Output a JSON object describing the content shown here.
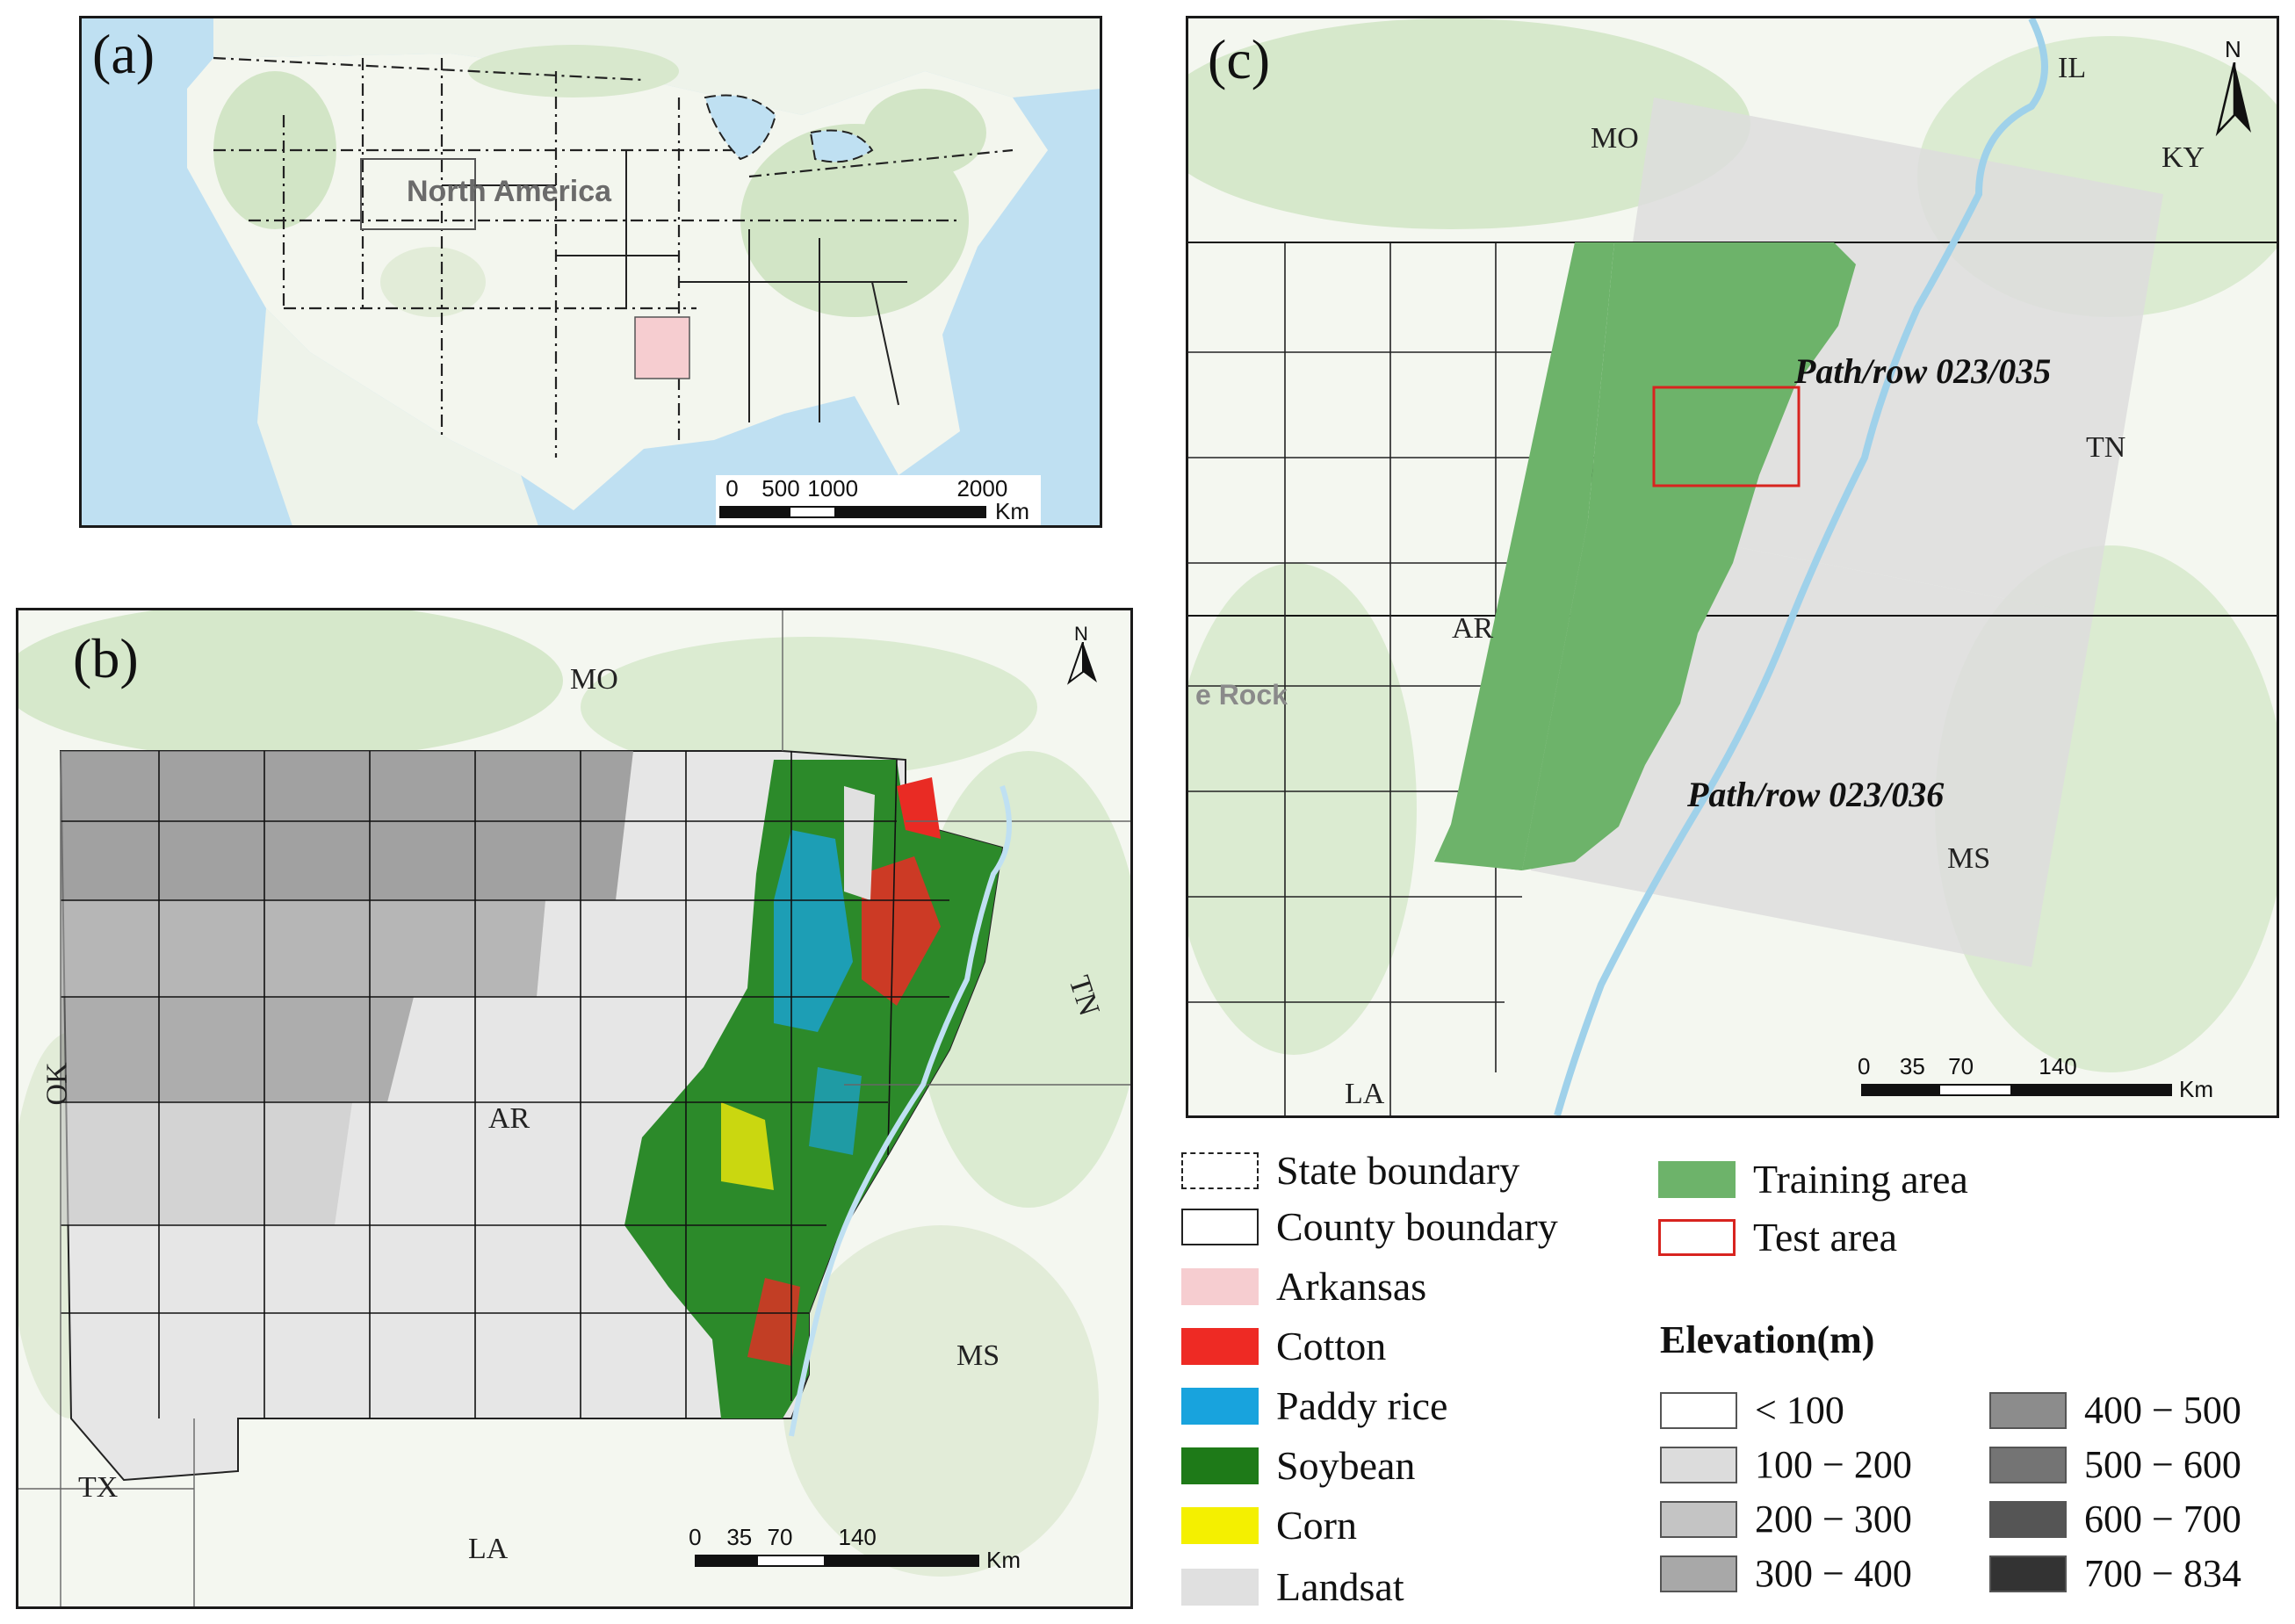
{
  "panels": {
    "a": {
      "label": "(a)",
      "region_label": "North America",
      "scale": {
        "ticks": [
          "0",
          "500",
          "1000",
          "2000"
        ],
        "unit": "Km"
      },
      "colors": {
        "ocean": "#bfe0f2",
        "land": "#f4f7f0",
        "veg": "#cfe3c3",
        "arkansas": "#f6cdd0"
      }
    },
    "b": {
      "label": "(b)",
      "north": "N",
      "states": {
        "mo": "MO",
        "ok": "OK",
        "ar": "AR",
        "tn": "TN",
        "ms": "MS",
        "tx": "TX",
        "la": "LA"
      },
      "scale": {
        "ticks": [
          "0",
          "35",
          "70",
          "140"
        ],
        "unit": "Km"
      }
    },
    "c": {
      "label": "(c)",
      "north": "N",
      "states": {
        "mo": "MO",
        "il": "IL",
        "ky": "KY",
        "tn": "TN",
        "ar": "AR",
        "ms": "MS",
        "la": "LA"
      },
      "city": "e Rock",
      "path_row_1": "Path/row 023/035",
      "path_row_2": "Path/row 023/036",
      "scale": {
        "ticks": [
          "0",
          "35",
          "70",
          "140"
        ],
        "unit": "Km"
      }
    }
  },
  "legend": {
    "items": [
      {
        "label": "State boundary",
        "style": "dashed",
        "color": "#ffffff"
      },
      {
        "label": "County boundary",
        "style": "solid",
        "color": "#ffffff"
      },
      {
        "label": "Arkansas",
        "color": "#f6cdd0"
      },
      {
        "label": "Cotton",
        "color": "#ee2a24"
      },
      {
        "label": "Paddy rice",
        "color": "#18a3dd"
      },
      {
        "label": "Soybean",
        "color": "#1e7a18"
      },
      {
        "label": "Corn",
        "color": "#f4f000"
      },
      {
        "label": "Landsat",
        "color": "#e0e0e0"
      }
    ],
    "training": {
      "label": "Training area",
      "color": "#6db36a"
    },
    "test": {
      "label": "Test area",
      "color": "#d8241f"
    },
    "elevation_title": "Elevation(m)",
    "elevation": [
      {
        "label": "< 100",
        "color": "#ffffff"
      },
      {
        "label": "100 − 200",
        "color": "#dcdcdc"
      },
      {
        "label": "200 − 300",
        "color": "#c4c4c4"
      },
      {
        "label": "300 − 400",
        "color": "#a8a8a8"
      },
      {
        "label": "400 − 500",
        "color": "#8c8c8c"
      },
      {
        "label": "500 − 600",
        "color": "#747474"
      },
      {
        "label": "600 − 700",
        "color": "#555555"
      },
      {
        "label": "700 − 834",
        "color": "#333333"
      }
    ]
  }
}
